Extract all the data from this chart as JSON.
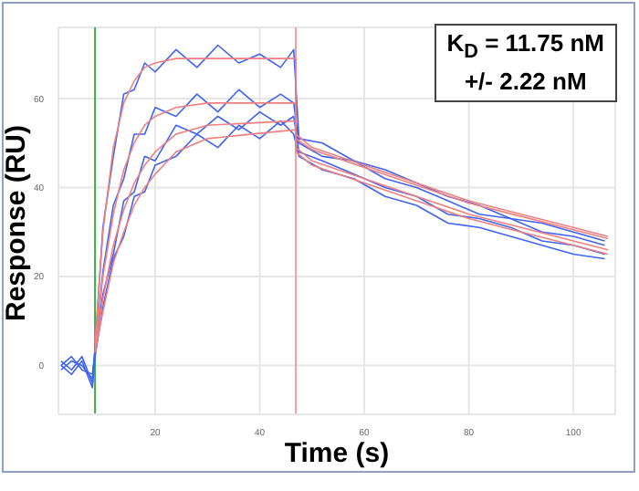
{
  "chart_data": {
    "type": "line",
    "xlabel": "Time (s)",
    "ylabel": "Response (RU)",
    "annotations": [
      "K$_{D}$ = 11.75 nM\n+/- 2.22 nM"
    ],
    "xlim": [
      1.5,
      108
    ],
    "xticks": [
      20,
      40,
      60,
      80,
      100
    ],
    "ylim": [
      -11,
      76
    ],
    "yticks": [
      0,
      20,
      40,
      60
    ],
    "grid": true,
    "marker": "none",
    "line_style": "solid",
    "ref_lines": [
      {
        "axis": "x",
        "value": 8.5,
        "color": "#3cb043"
      },
      {
        "axis": "x",
        "value": 46.9,
        "color": "#f4a0a0"
      }
    ],
    "series": [
      {
        "color": "#3f63f5",
        "x": [
          2,
          4,
          6,
          8,
          8.5,
          10,
          12,
          14,
          16,
          18,
          20,
          24,
          28,
          32,
          36,
          40,
          44,
          46.5,
          47.5,
          52,
          58,
          64,
          70,
          76,
          82,
          88,
          94,
          100,
          106
        ],
        "values": [
          1,
          -1,
          2,
          -4,
          4,
          31,
          47,
          61,
          62,
          68,
          66,
          71,
          67,
          72,
          68,
          70,
          67,
          71,
          51,
          50,
          46,
          44,
          41,
          38,
          36,
          33,
          32,
          30,
          28
        ]
      },
      {
        "color": "#3f63f5",
        "x": [
          2,
          4,
          6,
          8,
          8.5,
          10,
          12,
          14,
          16,
          18,
          20,
          24,
          28,
          32,
          36,
          40,
          44,
          46.5,
          47.5,
          52,
          58,
          64,
          70,
          76,
          82,
          88,
          94,
          100,
          106
        ],
        "values": [
          0,
          2,
          -1,
          -2,
          3,
          21,
          36,
          42,
          52,
          52,
          58,
          56,
          61,
          57,
          62,
          58,
          61,
          59,
          50,
          47,
          46,
          42,
          40,
          37,
          34,
          33,
          30,
          29,
          27
        ]
      },
      {
        "color": "#3f63f5",
        "x": [
          2,
          4,
          6,
          8,
          8.5,
          10,
          12,
          14,
          16,
          18,
          20,
          24,
          28,
          32,
          36,
          40,
          44,
          46.5,
          47.5,
          52,
          58,
          64,
          70,
          76,
          82,
          88,
          94,
          100,
          106
        ],
        "values": [
          -1,
          1,
          0,
          -3,
          3,
          16,
          25,
          37,
          39,
          47,
          46,
          54,
          52,
          56,
          53,
          57,
          54,
          56,
          48,
          46,
          43,
          40,
          38,
          34,
          33,
          31,
          28,
          27,
          25
        ]
      },
      {
        "color": "#3f63f5",
        "x": [
          2,
          4,
          6,
          8,
          8.5,
          10,
          12,
          14,
          16,
          18,
          20,
          24,
          28,
          32,
          36,
          40,
          44,
          46.5,
          47.5,
          52,
          58,
          64,
          70,
          76,
          82,
          88,
          94,
          100,
          106
        ],
        "values": [
          0,
          -2,
          1,
          -5,
          2,
          13,
          24,
          29,
          38,
          39,
          45,
          47,
          52,
          49,
          54,
          51,
          55,
          52,
          47,
          44,
          42,
          38,
          36,
          32,
          31,
          29,
          27,
          25,
          24
        ]
      },
      {
        "color": "#f08080",
        "x": [
          8.5,
          10,
          12,
          14,
          16,
          18,
          20,
          24,
          30,
          46.9,
          46.9,
          50,
          60,
          70,
          80,
          90,
          100,
          106.6
        ],
        "values": [
          5,
          30,
          49,
          59,
          64,
          67,
          68,
          69,
          69,
          69,
          52,
          49,
          45,
          41,
          37,
          34,
          31,
          29
        ]
      },
      {
        "color": "#f08080",
        "x": [
          8.5,
          10,
          12,
          14,
          16,
          18,
          20,
          24,
          30,
          46.9,
          46.9,
          50,
          60,
          70,
          80,
          90,
          100,
          106.6
        ],
        "values": [
          4,
          20,
          34,
          44,
          50,
          54,
          56,
          58,
          59,
          59,
          51,
          48.5,
          44.5,
          40.5,
          36.5,
          33.5,
          30.5,
          28.5
        ]
      },
      {
        "color": "#f08080",
        "x": [
          8.5,
          10,
          12,
          14,
          16,
          18,
          20,
          24,
          30,
          46.9,
          46.9,
          50,
          60,
          70,
          80,
          90,
          100,
          106.6
        ],
        "values": [
          3,
          15,
          27,
          35,
          41,
          45,
          48,
          52,
          54,
          55,
          49,
          46,
          42,
          38,
          34,
          31,
          28,
          26
        ]
      },
      {
        "color": "#f08080",
        "x": [
          8.5,
          10,
          12,
          14,
          16,
          18,
          20,
          24,
          30,
          46.9,
          46.9,
          50,
          60,
          70,
          80,
          90,
          100,
          106.6
        ],
        "values": [
          3,
          12,
          23,
          30,
          36,
          40,
          43,
          48,
          51,
          53,
          48,
          45,
          41,
          37,
          33,
          30,
          27,
          25
        ]
      }
    ]
  }
}
